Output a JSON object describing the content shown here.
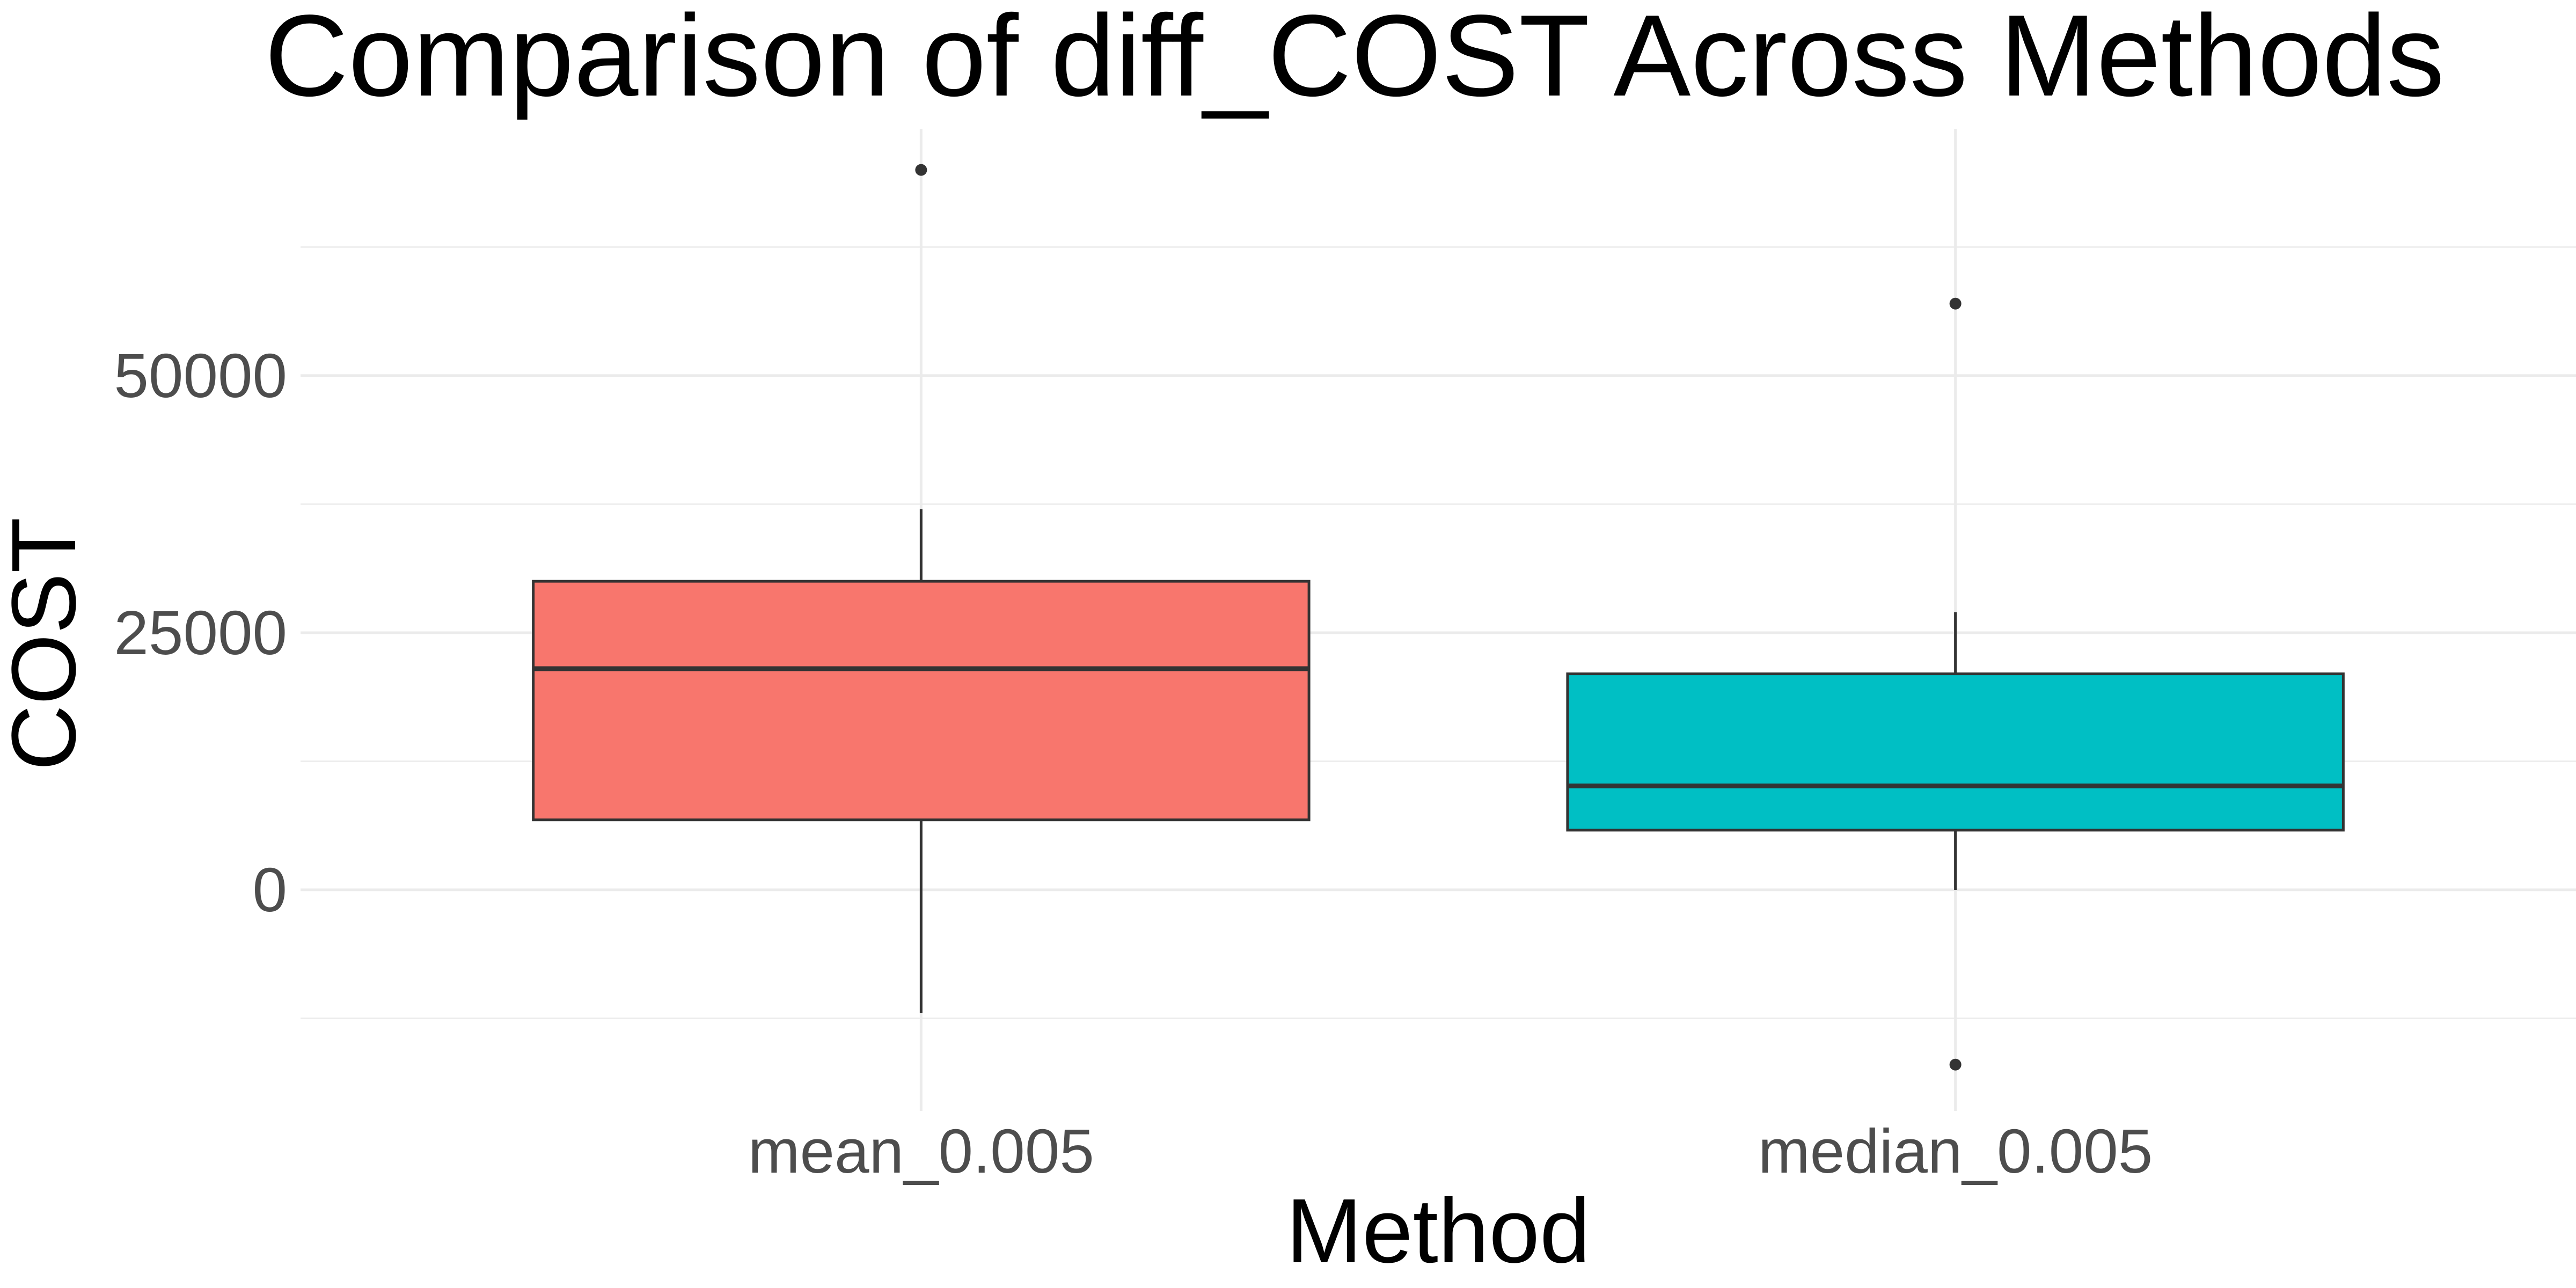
{
  "chart_data": {
    "type": "boxplot",
    "title": "Comparison of diff_COST Across Methods",
    "xlabel": "Method",
    "ylabel": "COST",
    "ylim": [
      -21500,
      74000
    ],
    "yticks": [
      0,
      25000,
      50000
    ],
    "y_tick_labels": [
      "0",
      "25000",
      "50000"
    ],
    "grid": true,
    "legend": "none",
    "categories": [
      "mean_0.005",
      "median_0.005"
    ],
    "series": [
      {
        "category": "mean_0.005",
        "color": "#F8766D",
        "whisker_low": -12000,
        "q1": 6800,
        "median": 21500,
        "q3": 30000,
        "whisker_high": 37000,
        "outliers": [
          70000
        ]
      },
      {
        "category": "median_0.005",
        "color": "#00BFC4",
        "whisker_low": 0,
        "q1": 5800,
        "median": 10100,
        "q3": 21000,
        "whisker_high": 27000,
        "outliers": [
          57000,
          -17000
        ]
      }
    ]
  }
}
